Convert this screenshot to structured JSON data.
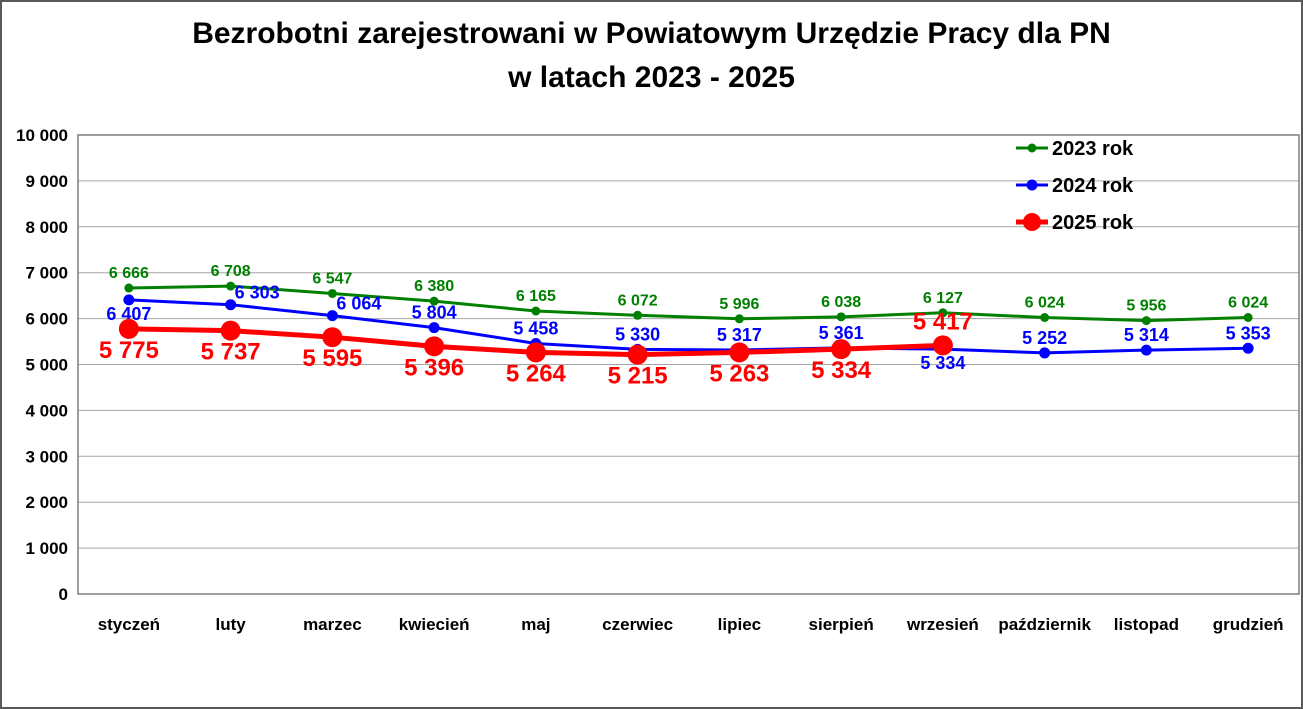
{
  "title": {
    "line1": "Bezrobotni zarejestrowani w Powiatowym Urzędzie Pracy dla PN",
    "line2": "w latach 2023 - 2025"
  },
  "chart_data": {
    "type": "line",
    "title": "Bezrobotni zarejestrowani w Powiatowym Urzędzie Pracy dla PN w latach 2023 - 2025",
    "xlabel": "",
    "ylabel": "",
    "categories": [
      "styczeń",
      "luty",
      "marzec",
      "kwiecień",
      "maj",
      "czerwiec",
      "lipiec",
      "sierpień",
      "wrzesień",
      "październik",
      "listopad",
      "grudzień"
    ],
    "series": [
      {
        "name": "2023 rok",
        "color": "#008000",
        "values": [
          6666,
          6708,
          6547,
          6380,
          6165,
          6072,
          5996,
          6038,
          6127,
          6024,
          5956,
          6024
        ],
        "label_positions": [
          "above",
          "above",
          "above",
          "above",
          "above",
          "above",
          "above",
          "above",
          "above",
          "above",
          "above",
          "above"
        ]
      },
      {
        "name": "2024 rok",
        "color": "#0000ff",
        "values": [
          6407,
          6303,
          6064,
          5804,
          5458,
          5330,
          5317,
          5361,
          5334,
          5252,
          5314,
          5353
        ],
        "label_positions": [
          "below",
          "right",
          "right",
          "above",
          "above",
          "above",
          "above",
          "above",
          "below",
          "above",
          "above",
          "above"
        ]
      },
      {
        "name": "2025 rok",
        "color": "#ff0000",
        "values": [
          5775,
          5737,
          5595,
          5396,
          5264,
          5215,
          5263,
          5334,
          5417
        ],
        "label_positions": [
          "below",
          "below",
          "below",
          "below",
          "below",
          "below",
          "below",
          "below",
          "above"
        ]
      }
    ],
    "ylim": [
      0,
      10000
    ],
    "ytick_step": 1000,
    "ytick_labels": [
      "0",
      "1 000",
      "2 000",
      "3 000",
      "4 000",
      "5 000",
      "6 000",
      "7 000",
      "8 000",
      "9 000",
      "10 000"
    ],
    "grid": true,
    "legend_position": "top-right",
    "legend_entries": [
      "2023 rok",
      "2024 rok",
      "2025 rok"
    ]
  },
  "colors": {
    "gridline": "#a6a6a6",
    "plot_border": "#7f7f7f",
    "text": "#000000"
  }
}
